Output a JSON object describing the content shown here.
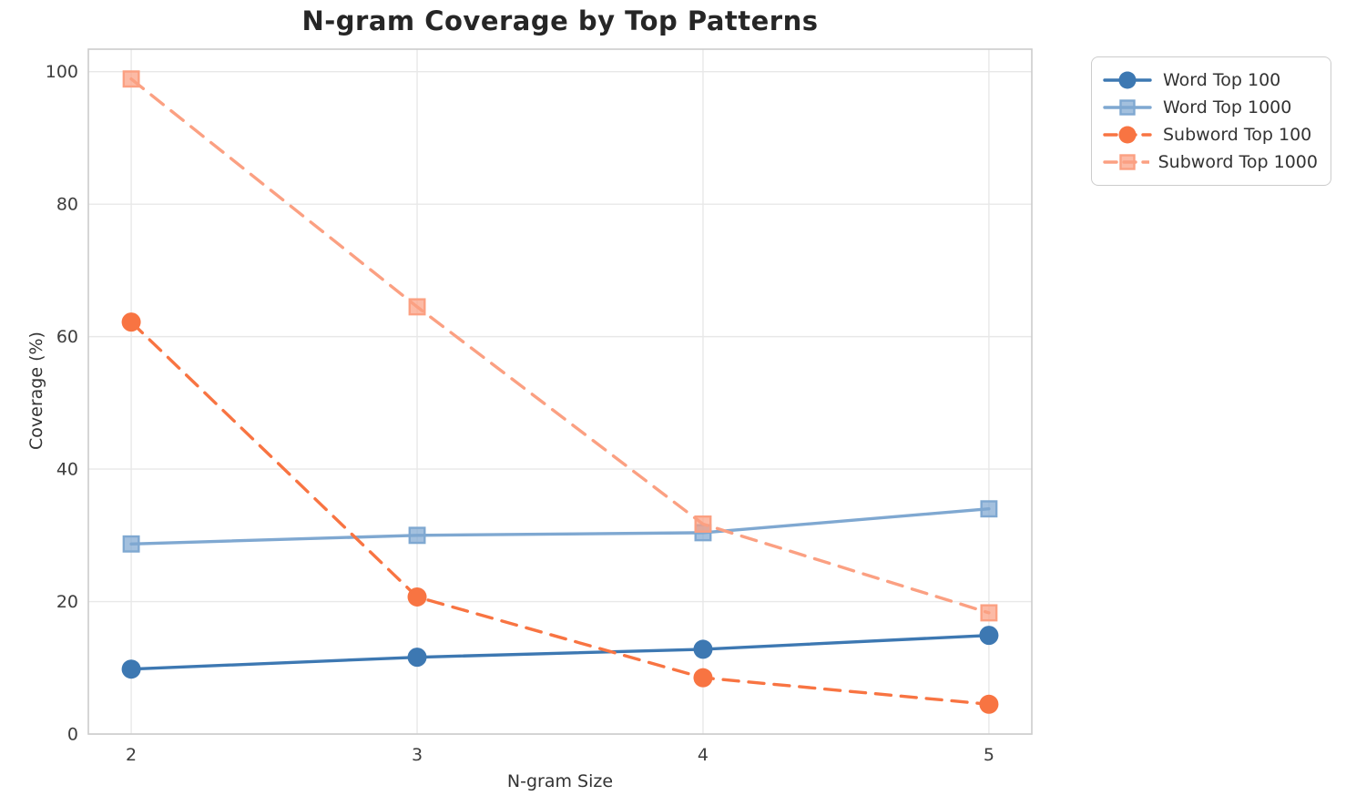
{
  "chart_data": {
    "type": "line",
    "title": "N-gram Coverage by Top Patterns",
    "xlabel": "N-gram Size",
    "ylabel": "Coverage (%)",
    "x": [
      2,
      3,
      4,
      5
    ],
    "xticks": [
      "2",
      "3",
      "4",
      "5"
    ],
    "yticks": [
      0,
      20,
      40,
      60,
      80,
      100
    ],
    "xlim": [
      1.85,
      5.15
    ],
    "ylim": [
      0,
      103.4
    ],
    "grid": true,
    "legend_position": "outside-upper-right",
    "colors": {
      "grid": "#e8e8e8",
      "spine": "#cccccc",
      "tick_label": "#3d3d3d",
      "word_blue": "#3d78b2",
      "word_blue_light": "#7fa8d1",
      "subword_orange": "#f87442",
      "subword_orange_light": "#fba082"
    },
    "series": [
      {
        "name": "Word Top 100",
        "color": "#3d78b2",
        "linestyle": "solid",
        "marker": "circle",
        "values": [
          9.8,
          11.6,
          12.8,
          14.9
        ]
      },
      {
        "name": "Word Top 1000",
        "color": "#7fa8d1",
        "linestyle": "solid",
        "marker": "square",
        "values": [
          28.7,
          30.0,
          30.4,
          34.0
        ]
      },
      {
        "name": "Subword Top 100",
        "color": "#f87442",
        "linestyle": "dashed",
        "marker": "circle",
        "values": [
          62.2,
          20.7,
          8.5,
          4.5
        ]
      },
      {
        "name": "Subword Top 1000",
        "color": "#fba082",
        "linestyle": "dashed",
        "marker": "square",
        "values": [
          98.9,
          64.5,
          31.7,
          18.3
        ]
      }
    ]
  }
}
